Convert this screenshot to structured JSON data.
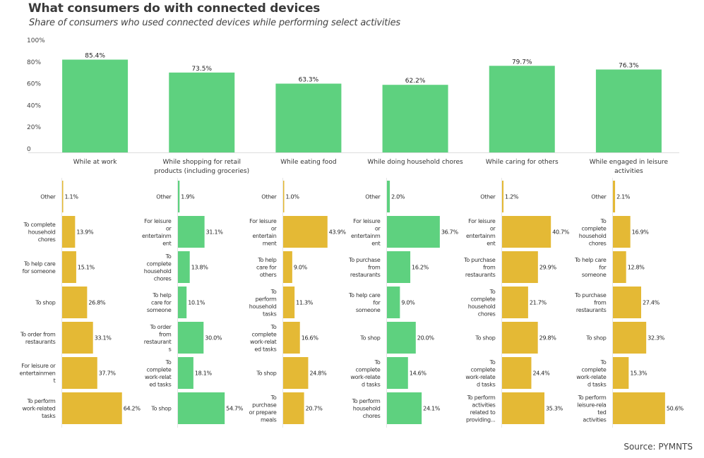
{
  "header": {
    "title": "What consumers do with connected devices",
    "subtitle": "Share of consumers who used connected devices while performing select activities"
  },
  "footer": {
    "source": "Source: PYMNTS"
  },
  "colors": {
    "green": "#5ed17f",
    "gold": "#e4b935",
    "axis": "#dddddd"
  },
  "chart_data": [
    {
      "type": "bar",
      "title": "What consumers do with connected devices",
      "subtitle": "Share of consumers who used connected devices while performing select activities",
      "categories": [
        [
          "While at work"
        ],
        [
          "While shopping for retail",
          "products (including groceries)"
        ],
        [
          "While eating food"
        ],
        [
          "While doing household chores"
        ],
        [
          "While caring for others"
        ],
        [
          "While engaged in leisure",
          "activities"
        ]
      ],
      "values": [
        85.4,
        73.5,
        63.3,
        62.2,
        79.7,
        76.3
      ],
      "value_labels": [
        "85.4%",
        "73.5%",
        "63.3%",
        "62.2%",
        "79.7%",
        "76.3%"
      ],
      "yticks": [
        "0",
        "20%",
        "40%",
        "60%",
        "80%",
        "100%"
      ],
      "ylim": [
        0,
        100
      ],
      "xlabel": "",
      "ylabel": "",
      "color": "#5ed17f",
      "grid": false
    },
    {
      "type": "bar",
      "orientation": "horizontal",
      "parent": "While at work",
      "color": "#e4b935",
      "categories": [
        [
          "Other"
        ],
        [
          "To complete",
          "household",
          "chores"
        ],
        [
          "To help care",
          "for someone"
        ],
        [
          "To shop"
        ],
        [
          "To order from",
          "restaurants"
        ],
        [
          "For leisure or",
          "entertainmen",
          "t"
        ],
        [
          "To perform",
          "work-related",
          "tasks"
        ]
      ],
      "values": [
        1.1,
        13.9,
        15.1,
        26.8,
        33.1,
        37.7,
        64.2
      ],
      "value_labels": [
        "1.1%",
        "13.9%",
        "15.1%",
        "26.8%",
        "33.1%",
        "37.7%",
        "64.2%"
      ]
    },
    {
      "type": "bar",
      "orientation": "horizontal",
      "parent": "While shopping for retail products (including groceries)",
      "color": "#5ed17f",
      "categories": [
        [
          "Other"
        ],
        [
          "For leisure",
          "or",
          "entertainm",
          "ent"
        ],
        [
          "To",
          "complete",
          "household",
          "chores"
        ],
        [
          "To help",
          "care for",
          "someone"
        ],
        [
          "To order",
          "from",
          "restaurant",
          "s"
        ],
        [
          "To",
          "complete",
          "work-relat",
          "ed tasks"
        ],
        [
          "To shop"
        ]
      ],
      "values": [
        1.9,
        31.1,
        13.8,
        10.1,
        30.0,
        18.1,
        54.7
      ],
      "value_labels": [
        "1.9%",
        "31.1%",
        "13.8%",
        "10.1%",
        "30.0%",
        "18.1%",
        "54.7%"
      ]
    },
    {
      "type": "bar",
      "orientation": "horizontal",
      "parent": "While eating food",
      "color": "#e4b935",
      "categories": [
        [
          "Other"
        ],
        [
          "For leisure",
          "or",
          "entertain",
          "ment"
        ],
        [
          "To help",
          "care for",
          "others"
        ],
        [
          "To",
          "perform",
          "household",
          "tasks"
        ],
        [
          "To",
          "complete",
          "work-relat",
          "ed tasks"
        ],
        [
          "To shop"
        ],
        [
          "To",
          "purchase",
          "or prepare",
          "meals"
        ]
      ],
      "values": [
        1.0,
        43.9,
        9.0,
        11.3,
        16.6,
        24.8,
        20.7
      ],
      "value_labels": [
        "1.0%",
        "43.9%",
        "9.0%",
        "11.3%",
        "16.6%",
        "24.8%",
        "20.7%"
      ]
    },
    {
      "type": "bar",
      "orientation": "horizontal",
      "parent": "While doing household chores",
      "color": "#5ed17f",
      "categories": [
        [
          "Other"
        ],
        [
          "For leisure",
          "or",
          "entertainm",
          "ent"
        ],
        [
          "To purchase",
          "from",
          "restaurants"
        ],
        [
          "To help care",
          "for",
          "someone"
        ],
        [
          "To shop"
        ],
        [
          "To",
          "complete",
          "work-relate",
          "d tasks"
        ],
        [
          "To perform",
          "household",
          "chores"
        ]
      ],
      "values": [
        2.0,
        36.7,
        16.2,
        9.0,
        20.0,
        14.6,
        24.1
      ],
      "value_labels": [
        "2.0%",
        "36.7%",
        "16.2%",
        "9.0%",
        "20.0%",
        "14.6%",
        "24.1%"
      ]
    },
    {
      "type": "bar",
      "orientation": "horizontal",
      "parent": "While caring for others",
      "color": "#e4b935",
      "categories": [
        [
          "Other"
        ],
        [
          "For leisure",
          "or",
          "entertainm",
          "ent"
        ],
        [
          "To purchase",
          "from",
          "restaurants"
        ],
        [
          "To",
          "complete",
          "household",
          "chores"
        ],
        [
          "To shop"
        ],
        [
          "To",
          "complete",
          "work-relate",
          "d tasks"
        ],
        [
          "To perform",
          "activities",
          "related to",
          "providing..."
        ]
      ],
      "values": [
        1.2,
        40.7,
        29.9,
        21.7,
        29.8,
        24.4,
        35.3
      ],
      "value_labels": [
        "1.2%",
        "40.7%",
        "29.9%",
        "21.7%",
        "29.8%",
        "24.4%",
        "35.3%"
      ]
    },
    {
      "type": "bar",
      "orientation": "horizontal",
      "parent": "While engaged in leisure activities",
      "color": "#e4b935",
      "categories": [
        [
          "Other"
        ],
        [
          "To",
          "complete",
          "household",
          "chores"
        ],
        [
          "To help care",
          "for",
          "someone"
        ],
        [
          "To purchase",
          "from",
          "restaurants"
        ],
        [
          "To shop"
        ],
        [
          "To",
          "complete",
          "work-relate",
          "d tasks"
        ],
        [
          "To perform",
          "leisure-rela",
          "ted",
          "activities"
        ]
      ],
      "values": [
        2.1,
        16.9,
        12.8,
        27.4,
        32.3,
        15.3,
        50.6
      ],
      "value_labels": [
        "2.1%",
        "16.9%",
        "12.8%",
        "27.4%",
        "32.3%",
        "15.3%",
        "50.6%"
      ]
    }
  ]
}
